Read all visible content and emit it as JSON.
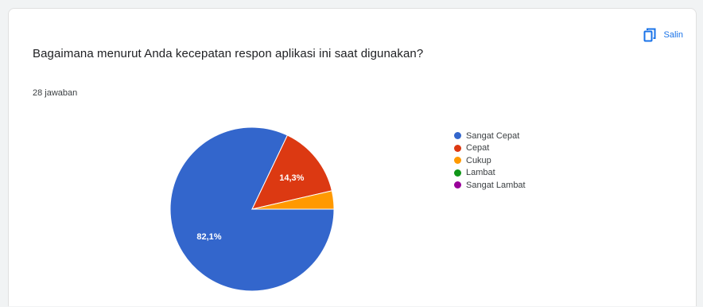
{
  "question": "Bagaimana menurut Anda kecepatan respon aplikasi ini saat digunakan?",
  "response_count": "28 jawaban",
  "copy_label": "Salin",
  "icons": {
    "copy": "copy-icon"
  },
  "chart_data": {
    "type": "pie",
    "categories": [
      "Sangat Cepat",
      "Cepat",
      "Cukup",
      "Lambat",
      "Sangat Lambat"
    ],
    "values": [
      82.1,
      14.3,
      3.6,
      0,
      0
    ],
    "labels_shown": [
      "82,1%",
      "14,3%",
      "",
      "",
      ""
    ],
    "colors": [
      "#3366cc",
      "#dc3912",
      "#ff9900",
      "#109618",
      "#990099"
    ],
    "legend_position": "right"
  }
}
